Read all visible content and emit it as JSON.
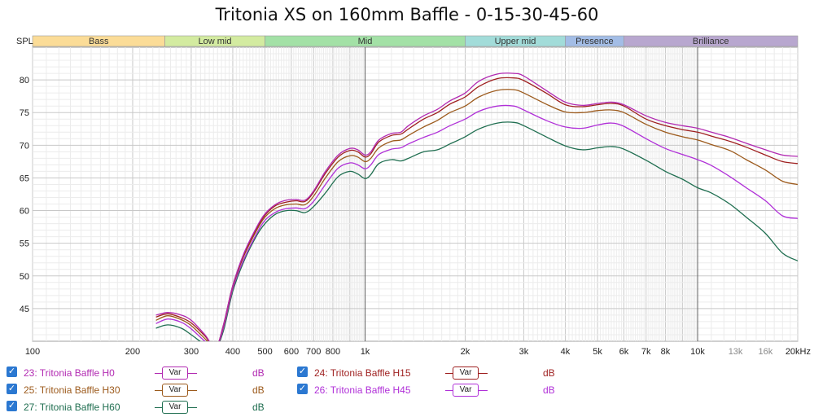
{
  "chart_data": {
    "type": "line",
    "title": "Tritonia XS on 160mm Baffle - 0-15-30-45-60",
    "ylabel": "SPL",
    "xscale": "log",
    "xlim": [
      100,
      20000
    ],
    "ylim": [
      40,
      85
    ],
    "grid": true,
    "y_ticks": [
      45,
      50,
      55,
      60,
      65,
      70,
      75,
      80
    ],
    "x_ticks": [
      {
        "v": 100,
        "label": "100"
      },
      {
        "v": 200,
        "label": "200"
      },
      {
        "v": 300,
        "label": "300"
      },
      {
        "v": 400,
        "label": "400"
      },
      {
        "v": 500,
        "label": "500"
      },
      {
        "v": 600,
        "label": "600"
      },
      {
        "v": 700,
        "label": "700"
      },
      {
        "v": 800,
        "label": "800"
      },
      {
        "v": 1000,
        "label": "1k"
      },
      {
        "v": 2000,
        "label": "2k"
      },
      {
        "v": 3000,
        "label": "3k"
      },
      {
        "v": 4000,
        "label": "4k"
      },
      {
        "v": 5000,
        "label": "5k"
      },
      {
        "v": 6000,
        "label": "6k"
      },
      {
        "v": 7000,
        "label": "7k"
      },
      {
        "v": 8000,
        "label": "8k"
      },
      {
        "v": 10000,
        "label": "10k"
      },
      {
        "v": 13000,
        "label": "13k"
      },
      {
        "v": 16000,
        "label": "16k"
      },
      {
        "v": 20000,
        "label": "20kHz"
      }
    ],
    "bands": [
      {
        "label": "Bass",
        "from": 100,
        "to": 250,
        "color": "#fbdc97"
      },
      {
        "label": "Low mid",
        "from": 250,
        "to": 500,
        "color": "#d3eba0"
      },
      {
        "label": "Mid",
        "from": 500,
        "to": 2000,
        "color": "#a3e1a6"
      },
      {
        "label": "Upper mid",
        "from": 2000,
        "to": 4000,
        "color": "#a2dcd9"
      },
      {
        "label": "Presence",
        "from": 4000,
        "to": 6000,
        "color": "#a3bde6"
      },
      {
        "label": "Brilliance",
        "from": 6000,
        "to": 20000,
        "color": "#b8a7cf"
      }
    ],
    "series": [
      {
        "name": "23: Tritonia Baffle H0",
        "color": "#b22ab2",
        "points": [
          [
            235,
            44.0
          ],
          [
            255,
            44.4
          ],
          [
            280,
            44.0
          ],
          [
            300,
            43.2
          ],
          [
            330,
            41.0
          ],
          [
            355,
            39.0
          ],
          [
            375,
            42.5
          ],
          [
            400,
            48.5
          ],
          [
            430,
            53.2
          ],
          [
            470,
            57.3
          ],
          [
            500,
            59.5
          ],
          [
            540,
            61.0
          ],
          [
            580,
            61.6
          ],
          [
            620,
            61.7
          ],
          [
            660,
            61.6
          ],
          [
            700,
            63.0
          ],
          [
            760,
            66.0
          ],
          [
            830,
            68.5
          ],
          [
            900,
            69.5
          ],
          [
            950,
            69.3
          ],
          [
            1000,
            68.5
          ],
          [
            1040,
            69.0
          ],
          [
            1100,
            70.8
          ],
          [
            1200,
            71.8
          ],
          [
            1280,
            72.0
          ],
          [
            1350,
            73.0
          ],
          [
            1500,
            74.5
          ],
          [
            1650,
            75.5
          ],
          [
            1800,
            76.8
          ],
          [
            2000,
            78.0
          ],
          [
            2200,
            79.8
          ],
          [
            2500,
            80.9
          ],
          [
            2800,
            81.0
          ],
          [
            3000,
            80.6
          ],
          [
            3500,
            78.4
          ],
          [
            4000,
            76.6
          ],
          [
            4500,
            76.1
          ],
          [
            5000,
            76.4
          ],
          [
            5500,
            76.6
          ],
          [
            6000,
            76.2
          ],
          [
            7000,
            74.5
          ],
          [
            8000,
            73.5
          ],
          [
            9000,
            73.0
          ],
          [
            10000,
            72.6
          ],
          [
            11000,
            72.0
          ],
          [
            12500,
            71.2
          ],
          [
            14000,
            70.3
          ],
          [
            16000,
            69.3
          ],
          [
            18000,
            68.5
          ],
          [
            20000,
            68.3
          ]
        ]
      },
      {
        "name": "24: Tritonia Baffle H15",
        "color": "#9e1f1f",
        "points": [
          [
            235,
            43.7
          ],
          [
            255,
            44.2
          ],
          [
            280,
            43.6
          ],
          [
            300,
            42.8
          ],
          [
            330,
            40.8
          ],
          [
            355,
            39.0
          ],
          [
            375,
            42.5
          ],
          [
            400,
            48.5
          ],
          [
            430,
            53.0
          ],
          [
            470,
            57.1
          ],
          [
            500,
            59.3
          ],
          [
            540,
            60.8
          ],
          [
            580,
            61.3
          ],
          [
            620,
            61.5
          ],
          [
            660,
            61.4
          ],
          [
            700,
            62.8
          ],
          [
            760,
            65.7
          ],
          [
            830,
            68.2
          ],
          [
            900,
            69.2
          ],
          [
            950,
            69.0
          ],
          [
            1000,
            68.2
          ],
          [
            1040,
            68.7
          ],
          [
            1100,
            70.5
          ],
          [
            1200,
            71.5
          ],
          [
            1280,
            71.7
          ],
          [
            1350,
            72.5
          ],
          [
            1500,
            74.0
          ],
          [
            1650,
            75.0
          ],
          [
            1800,
            76.3
          ],
          [
            2000,
            77.4
          ],
          [
            2200,
            79.0
          ],
          [
            2500,
            80.2
          ],
          [
            2800,
            80.3
          ],
          [
            3000,
            79.9
          ],
          [
            3500,
            78.0
          ],
          [
            4000,
            76.2
          ],
          [
            4500,
            75.9
          ],
          [
            5000,
            76.2
          ],
          [
            5500,
            76.4
          ],
          [
            6000,
            76.0
          ],
          [
            7000,
            74.0
          ],
          [
            8000,
            73.0
          ],
          [
            9000,
            72.4
          ],
          [
            10000,
            72.0
          ],
          [
            11000,
            71.4
          ],
          [
            12500,
            70.6
          ],
          [
            14000,
            69.7
          ],
          [
            16000,
            68.5
          ],
          [
            18000,
            67.5
          ],
          [
            20000,
            67.2
          ]
        ]
      },
      {
        "name": "25: Tritonia Baffle H30",
        "color": "#9c5a1c",
        "points": [
          [
            235,
            43.2
          ],
          [
            255,
            43.9
          ],
          [
            280,
            43.3
          ],
          [
            300,
            42.4
          ],
          [
            330,
            40.4
          ],
          [
            355,
            39.0
          ],
          [
            375,
            42.3
          ],
          [
            400,
            48.3
          ],
          [
            430,
            52.8
          ],
          [
            470,
            56.8
          ],
          [
            500,
            59.0
          ],
          [
            540,
            60.4
          ],
          [
            580,
            60.9
          ],
          [
            620,
            61.0
          ],
          [
            660,
            60.9
          ],
          [
            700,
            62.2
          ],
          [
            760,
            65.0
          ],
          [
            830,
            67.5
          ],
          [
            900,
            68.4
          ],
          [
            950,
            68.2
          ],
          [
            1000,
            67.5
          ],
          [
            1040,
            68.0
          ],
          [
            1100,
            69.6
          ],
          [
            1200,
            70.6
          ],
          [
            1280,
            70.8
          ],
          [
            1350,
            71.5
          ],
          [
            1500,
            72.8
          ],
          [
            1650,
            73.8
          ],
          [
            1800,
            75.0
          ],
          [
            2000,
            76.0
          ],
          [
            2200,
            77.4
          ],
          [
            2500,
            78.4
          ],
          [
            2800,
            78.5
          ],
          [
            3000,
            78.0
          ],
          [
            3500,
            76.3
          ],
          [
            4000,
            75.1
          ],
          [
            4500,
            75.0
          ],
          [
            5000,
            75.3
          ],
          [
            5500,
            75.4
          ],
          [
            6000,
            75.0
          ],
          [
            7000,
            73.2
          ],
          [
            8000,
            72.0
          ],
          [
            9000,
            71.3
          ],
          [
            10000,
            70.8
          ],
          [
            11000,
            70.1
          ],
          [
            12500,
            69.2
          ],
          [
            14000,
            67.8
          ],
          [
            16000,
            66.2
          ],
          [
            18000,
            64.5
          ],
          [
            20000,
            64.0
          ]
        ]
      },
      {
        "name": "26: Tritonia Baffle H45",
        "color": "#b030d8",
        "points": [
          [
            235,
            42.7
          ],
          [
            255,
            43.4
          ],
          [
            280,
            42.9
          ],
          [
            300,
            41.9
          ],
          [
            330,
            40.0
          ],
          [
            355,
            39.0
          ],
          [
            375,
            42.0
          ],
          [
            400,
            48.0
          ],
          [
            430,
            52.3
          ],
          [
            470,
            56.3
          ],
          [
            500,
            58.5
          ],
          [
            540,
            59.8
          ],
          [
            580,
            60.3
          ],
          [
            620,
            60.4
          ],
          [
            660,
            60.3
          ],
          [
            700,
            61.4
          ],
          [
            760,
            64.0
          ],
          [
            830,
            66.5
          ],
          [
            900,
            67.3
          ],
          [
            950,
            67.0
          ],
          [
            1000,
            66.4
          ],
          [
            1040,
            67.0
          ],
          [
            1100,
            68.6
          ],
          [
            1200,
            69.4
          ],
          [
            1280,
            69.6
          ],
          [
            1350,
            70.2
          ],
          [
            1500,
            71.2
          ],
          [
            1650,
            72.0
          ],
          [
            1800,
            73.0
          ],
          [
            2000,
            74.0
          ],
          [
            2200,
            75.2
          ],
          [
            2500,
            76.0
          ],
          [
            2800,
            76.0
          ],
          [
            3000,
            75.4
          ],
          [
            3500,
            73.8
          ],
          [
            4000,
            72.8
          ],
          [
            4500,
            72.6
          ],
          [
            5000,
            73.1
          ],
          [
            5500,
            73.4
          ],
          [
            6000,
            72.9
          ],
          [
            7000,
            71.0
          ],
          [
            8000,
            69.5
          ],
          [
            9000,
            68.6
          ],
          [
            10000,
            67.8
          ],
          [
            11000,
            66.9
          ],
          [
            12500,
            65.2
          ],
          [
            14000,
            63.5
          ],
          [
            16000,
            61.5
          ],
          [
            18000,
            59.2
          ],
          [
            20000,
            58.8
          ]
        ]
      },
      {
        "name": "27: Tritonia Baffle H60",
        "color": "#1f6e50",
        "points": [
          [
            235,
            42.0
          ],
          [
            255,
            42.5
          ],
          [
            280,
            42.0
          ],
          [
            300,
            41.0
          ],
          [
            330,
            39.5
          ],
          [
            355,
            39.0
          ],
          [
            375,
            41.6
          ],
          [
            400,
            47.6
          ],
          [
            430,
            52.0
          ],
          [
            470,
            56.0
          ],
          [
            500,
            58.0
          ],
          [
            540,
            59.5
          ],
          [
            580,
            60.0
          ],
          [
            620,
            60.0
          ],
          [
            660,
            59.7
          ],
          [
            700,
            60.6
          ],
          [
            760,
            62.7
          ],
          [
            830,
            65.2
          ],
          [
            900,
            66.0
          ],
          [
            950,
            65.6
          ],
          [
            1000,
            64.9
          ],
          [
            1040,
            65.5
          ],
          [
            1100,
            67.2
          ],
          [
            1200,
            67.8
          ],
          [
            1280,
            67.6
          ],
          [
            1350,
            68.0
          ],
          [
            1500,
            69.0
          ],
          [
            1650,
            69.3
          ],
          [
            1800,
            70.2
          ],
          [
            2000,
            71.3
          ],
          [
            2200,
            72.5
          ],
          [
            2500,
            73.4
          ],
          [
            2800,
            73.5
          ],
          [
            3000,
            73.0
          ],
          [
            3500,
            71.3
          ],
          [
            4000,
            69.9
          ],
          [
            4500,
            69.3
          ],
          [
            5000,
            69.6
          ],
          [
            5500,
            69.8
          ],
          [
            6000,
            69.4
          ],
          [
            7000,
            67.7
          ],
          [
            8000,
            66.0
          ],
          [
            9000,
            64.8
          ],
          [
            10000,
            63.5
          ],
          [
            11000,
            62.7
          ],
          [
            12500,
            61.0
          ],
          [
            14000,
            59.0
          ],
          [
            16000,
            56.5
          ],
          [
            18000,
            53.5
          ],
          [
            20000,
            52.3
          ]
        ]
      }
    ]
  },
  "legend": {
    "var_label": "Var",
    "unit_label": "dB",
    "check_mark": "✓",
    "items": [
      {
        "name": "23: Tritonia Baffle H0",
        "color": "#b22ab2",
        "x": 8,
        "y": 0
      },
      {
        "name": "24: Tritonia Baffle H15",
        "color": "#9e1f1f",
        "x": 365,
        "y": 0
      },
      {
        "name": "25: Tritonia Baffle H30",
        "color": "#9c5a1c",
        "x": 8,
        "y": 21
      },
      {
        "name": "26: Tritonia Baffle H45",
        "color": "#b030d8",
        "x": 365,
        "y": 21
      },
      {
        "name": "27: Tritonia Baffle H60",
        "color": "#1f6e50",
        "x": 8,
        "y": 42
      }
    ]
  }
}
